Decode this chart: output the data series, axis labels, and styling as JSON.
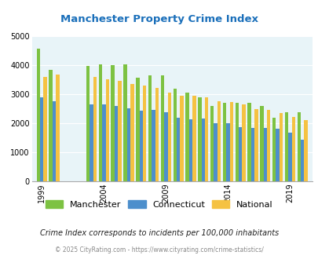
{
  "title": "Manchester Property Crime Index",
  "years": [
    1999,
    2000,
    2003,
    2004,
    2005,
    2006,
    2007,
    2008,
    2009,
    2010,
    2011,
    2012,
    2013,
    2014,
    2015,
    2016,
    2017,
    2018,
    2019,
    2020
  ],
  "manchester": [
    4570,
    3850,
    3980,
    4040,
    4000,
    4030,
    3580,
    3660,
    3650,
    3190,
    3070,
    2900,
    2600,
    2700,
    2700,
    2700,
    2590,
    2190,
    2380,
    2390
  ],
  "connecticut": [
    2900,
    2760,
    2660,
    2660,
    2590,
    2510,
    2440,
    2470,
    2370,
    2190,
    2150,
    2160,
    2010,
    2000,
    1870,
    1850,
    1830,
    1810,
    1680,
    1440
  ],
  "national": [
    3600,
    3680,
    3600,
    3510,
    3450,
    3360,
    3300,
    3220,
    3060,
    2960,
    2960,
    2890,
    2760,
    2730,
    2640,
    2490,
    2470,
    2360,
    2210,
    2110
  ],
  "manchester_color": "#7dc242",
  "connecticut_color": "#4d8fcc",
  "national_color": "#f5c242",
  "bg_color": "#e8f4f8",
  "title_color": "#1a6fba",
  "subtitle": "Crime Index corresponds to incidents per 100,000 inhabitants",
  "footer": "© 2025 CityRating.com - https://www.cityrating.com/crime-statistics/",
  "ylim": [
    0,
    5000
  ],
  "yticks": [
    0,
    1000,
    2000,
    3000,
    4000,
    5000
  ],
  "xtick_years": [
    1999,
    2004,
    2009,
    2014,
    2019
  ]
}
